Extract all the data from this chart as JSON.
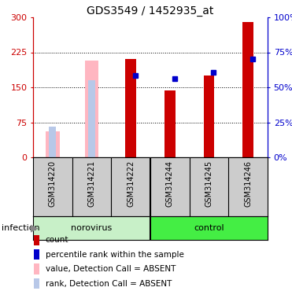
{
  "title": "GDS3549 / 1452935_at",
  "samples": [
    "GSM314220",
    "GSM314221",
    "GSM314222",
    "GSM314244",
    "GSM314245",
    "GSM314246"
  ],
  "groups": [
    "norovirus",
    "norovirus",
    "norovirus",
    "control",
    "control",
    "control"
  ],
  "group_names": [
    "norovirus",
    "control"
  ],
  "absent": [
    true,
    true,
    false,
    false,
    false,
    false
  ],
  "count_values": [
    0,
    0,
    210,
    143,
    175,
    290
  ],
  "absent_value_bars": [
    55,
    207,
    0,
    0,
    0,
    0
  ],
  "absent_rank_bars": [
    65,
    165,
    0,
    0,
    0,
    0
  ],
  "percentile_rank": [
    0,
    0,
    175,
    168,
    182,
    210
  ],
  "show_percentile": [
    false,
    false,
    true,
    true,
    true,
    true
  ],
  "ylim_left": [
    0,
    300
  ],
  "ylim_right": [
    0,
    100
  ],
  "left_ticks": [
    0,
    75,
    150,
    225,
    300
  ],
  "right_ticks": [
    0,
    25,
    50,
    75,
    100
  ],
  "left_color": "#cc0000",
  "right_color": "#0000cc",
  "absent_value_color": "#ffb6c1",
  "absent_rank_color": "#b8c8e8",
  "count_color": "#cc0000",
  "percentile_color": "#0000cc",
  "norovirus_color": "#c8f0c8",
  "control_color": "#44ee44",
  "sample_bg_color": "#cccccc",
  "legend_items": [
    {
      "label": "count",
      "color": "#cc0000"
    },
    {
      "label": "percentile rank within the sample",
      "color": "#0000cc"
    },
    {
      "label": "value, Detection Call = ABSENT",
      "color": "#ffb6c1"
    },
    {
      "label": "rank, Detection Call = ABSENT",
      "color": "#b8c8e8"
    }
  ]
}
